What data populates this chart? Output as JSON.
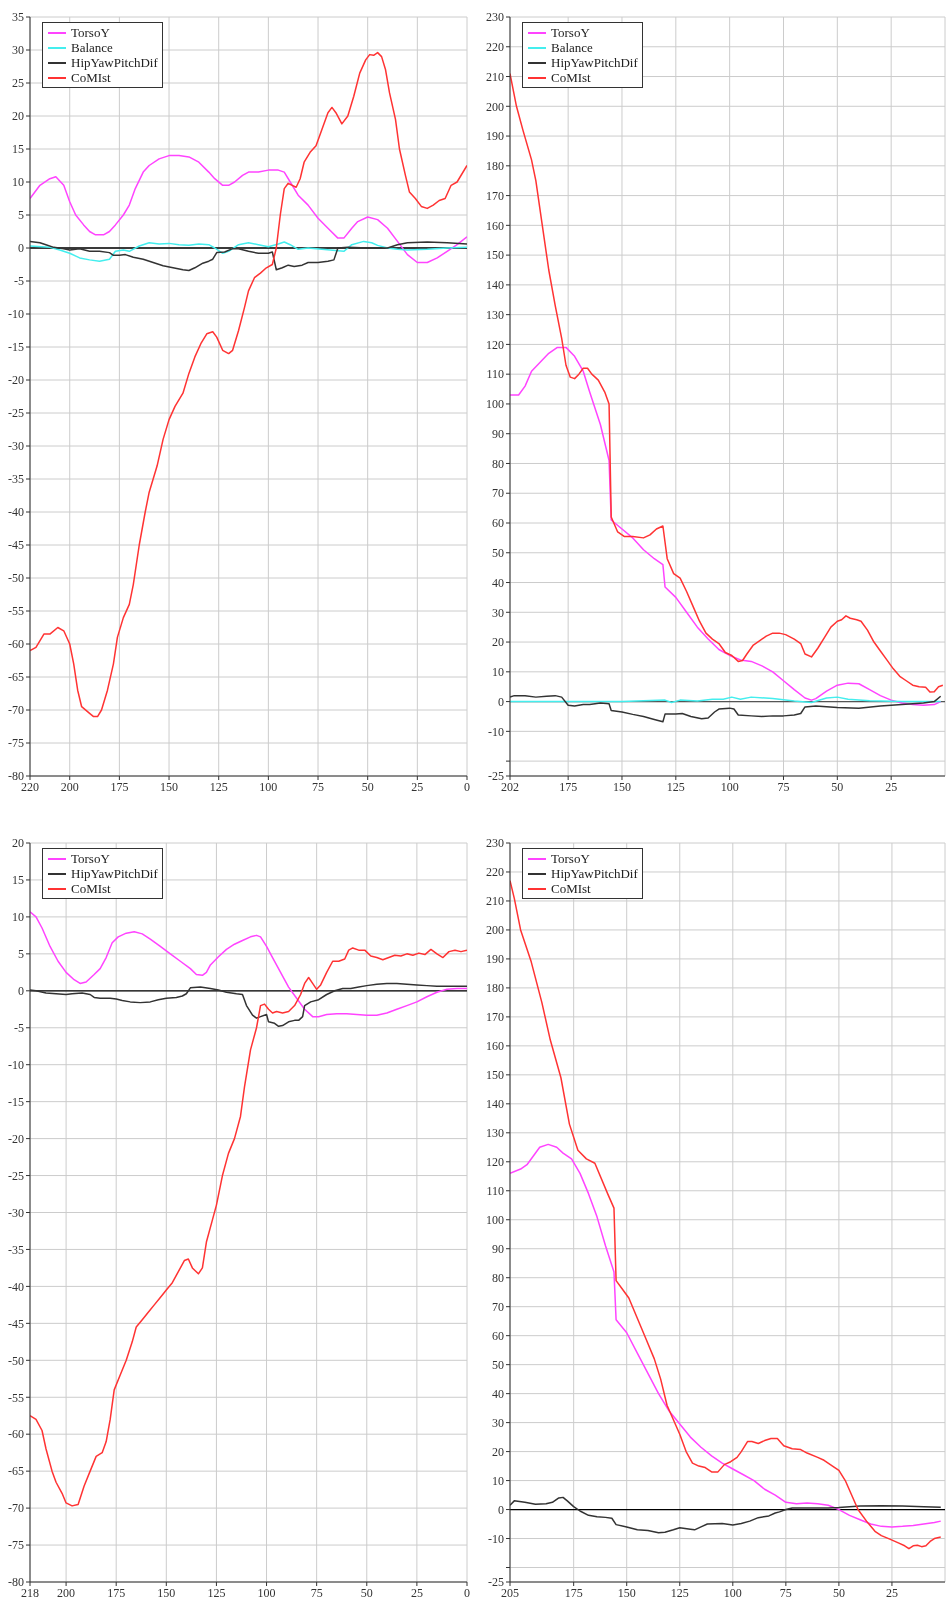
{
  "chart_data": [
    {
      "type": "line",
      "xlim": [
        220,
        0
      ],
      "xticks": [
        220,
        200,
        175,
        150,
        125,
        100,
        75,
        50,
        25,
        0
      ],
      "ylim": [
        -80,
        35
      ],
      "yticks": [
        35,
        30,
        25,
        20,
        15,
        10,
        5,
        0,
        -5,
        -10,
        -15,
        -20,
        -25,
        -30,
        -35,
        -40,
        -45,
        -50,
        -55,
        -60,
        -65,
        -70,
        -75,
        -80
      ],
      "grid": true,
      "legend": "top left",
      "ref_lines": [
        {
          "axis": "y",
          "value": 0,
          "color": "#000000"
        }
      ],
      "series": [
        {
          "name": "TorsoY",
          "color": "#ff44ff",
          "x": [
            220,
            215,
            210,
            207,
            203,
            200,
            197,
            193,
            190,
            187,
            183,
            180,
            177,
            173,
            170,
            167,
            163,
            160,
            155,
            150,
            145,
            140,
            135,
            130,
            127,
            123,
            120,
            117,
            113,
            110,
            105,
            100,
            95,
            92,
            89,
            85,
            80,
            75,
            70,
            65,
            62,
            58,
            55,
            50,
            45,
            40,
            35,
            30,
            25,
            20,
            15,
            10,
            5,
            0
          ],
          "values": [
            7.5,
            9.5,
            10.5,
            10.8,
            9.5,
            7,
            5,
            3.5,
            2.5,
            2,
            2,
            2.5,
            3.5,
            5,
            6.5,
            9,
            11.5,
            12.5,
            13.5,
            14,
            14,
            13.8,
            13,
            11.5,
            10.5,
            9.5,
            9.5,
            10,
            11,
            11.5,
            11.5,
            11.8,
            11.8,
            11.5,
            10,
            8,
            6.5,
            4.5,
            3,
            1.5,
            1.5,
            3,
            4,
            4.7,
            4.3,
            3,
            1,
            -1,
            -2.2,
            -2.2,
            -1.5,
            -0.5,
            0.5,
            1.7
          ]
        },
        {
          "name": "Balance",
          "color": "#44eeee",
          "x": [
            220,
            210,
            205,
            200,
            195,
            190,
            185,
            180,
            177,
            173,
            170,
            165,
            160,
            155,
            150,
            145,
            140,
            135,
            130,
            127,
            123,
            120,
            115,
            110,
            105,
            100,
            95,
            92,
            89,
            85,
            80,
            62,
            58,
            52,
            48,
            45,
            40,
            35,
            30,
            20,
            10,
            0
          ],
          "values": [
            0.3,
            0.1,
            -0.3,
            -0.8,
            -1.5,
            -1.8,
            -2,
            -1.7,
            -0.5,
            -0.3,
            -0.5,
            0.3,
            0.8,
            0.6,
            0.7,
            0.5,
            0.4,
            0.6,
            0.5,
            0,
            -0.8,
            -0.5,
            0.5,
            0.8,
            0.5,
            0.2,
            0.6,
            0.9,
            0.5,
            -0.2,
            0,
            -0.5,
            0.5,
            1,
            0.8,
            0.4,
            0,
            -0.2,
            -0.3,
            -0.2,
            0,
            0.1
          ]
        },
        {
          "name": "HipYawPitchDif",
          "color": "#333333",
          "x": [
            220,
            215,
            212,
            208,
            203,
            200,
            195,
            190,
            185,
            180,
            178,
            175,
            172,
            168,
            163,
            158,
            153,
            148,
            143,
            140,
            137,
            133,
            130,
            128,
            126,
            122,
            118,
            115,
            110,
            105,
            100,
            98,
            96,
            93,
            90,
            87,
            83,
            80,
            75,
            70,
            67,
            65,
            60,
            50,
            40,
            35,
            30,
            20,
            10,
            0
          ],
          "values": [
            1,
            0.8,
            0.5,
            0.1,
            -0.1,
            -0.3,
            -0.1,
            -0.5,
            -0.5,
            -0.7,
            -1.1,
            -1.1,
            -1,
            -1.4,
            -1.7,
            -2.2,
            -2.7,
            -3,
            -3.3,
            -3.4,
            -3,
            -2.3,
            -2,
            -1.7,
            -0.7,
            -0.6,
            -0.1,
            -0.1,
            -0.5,
            -0.8,
            -0.8,
            -0.6,
            -3.3,
            -3,
            -2.6,
            -2.8,
            -2.6,
            -2.2,
            -2.2,
            -2,
            -1.8,
            0,
            0.1,
            0,
            0,
            0.5,
            0.8,
            0.9,
            0.8,
            0.6
          ]
        },
        {
          "name": "CoMIst",
          "color": "#ff3333",
          "x": [
            220,
            217,
            213,
            210,
            206,
            203,
            200,
            198,
            196,
            194,
            190,
            188,
            186,
            184,
            181,
            178,
            176,
            173,
            170,
            168,
            165,
            162,
            160,
            156,
            153,
            150,
            147,
            143,
            140,
            137,
            134,
            131,
            128,
            126,
            123,
            120,
            118,
            115,
            112,
            110,
            107,
            104,
            101,
            98,
            96,
            94,
            92,
            90,
            88,
            86,
            84,
            82,
            79,
            76,
            73,
            70,
            68,
            66,
            63,
            60,
            57,
            54,
            51,
            49,
            47,
            45,
            43,
            41,
            39,
            36,
            34,
            31,
            29,
            26,
            23,
            20,
            17,
            14,
            11,
            8,
            5,
            0
          ],
          "values": [
            -61,
            -60.5,
            -58.5,
            -58.5,
            -57.5,
            -58,
            -60,
            -63,
            -67,
            -69.5,
            -70.5,
            -71,
            -71,
            -70,
            -67,
            -63,
            -59,
            -56,
            -54,
            -51,
            -45,
            -40,
            -37,
            -33,
            -29,
            -26,
            -24,
            -22,
            -19,
            -16.5,
            -14.5,
            -13,
            -12.7,
            -13.5,
            -15.5,
            -16,
            -15.5,
            -12.5,
            -9,
            -6.5,
            -4.5,
            -3.8,
            -3,
            -2.5,
            0,
            5,
            9,
            9.8,
            9.5,
            9.2,
            10.5,
            13,
            14.5,
            15.5,
            18,
            20.5,
            21.3,
            20.5,
            18.8,
            20,
            23,
            26.5,
            28.5,
            29.3,
            29.2,
            29.6,
            29,
            27,
            23.5,
            19.5,
            15,
            11,
            8.5,
            7.5,
            6.3,
            6,
            6.5,
            7.2,
            7.5,
            9.5,
            10,
            12.5
          ]
        }
      ]
    },
    {
      "type": "line",
      "xlim": [
        202,
        0
      ],
      "xticks": [
        202,
        175,
        150,
        125,
        100,
        75,
        50,
        25
      ],
      "ylim": [
        -25,
        230
      ],
      "yticks": [
        230,
        220,
        210,
        200,
        190,
        180,
        170,
        160,
        150,
        140,
        130,
        120,
        110,
        100,
        90,
        80,
        70,
        60,
        50,
        40,
        30,
        20,
        10,
        0,
        -10,
        {
          "value": -20,
          "label": null
        },
        -25
      ],
      "grid": true,
      "legend": "top left",
      "ref_lines": [
        {
          "axis": "y",
          "value": 0,
          "color": "#555555"
        }
      ],
      "series": [
        {
          "name": "TorsoY",
          "color": "#ff44ff",
          "x": [
            202,
            198,
            195,
            192,
            188,
            184,
            180,
            176,
            172,
            168,
            165,
            160,
            156,
            155,
            150,
            145,
            140,
            135,
            131,
            130,
            125,
            120,
            115,
            110,
            105,
            100,
            95,
            90,
            85,
            80,
            75,
            70,
            65,
            62,
            60,
            55,
            50,
            45,
            40,
            35,
            30,
            25,
            20,
            15,
            10,
            5,
            2
          ],
          "values": [
            103,
            103,
            106,
            111,
            114,
            117,
            119,
            119,
            116,
            111,
            104,
            93,
            81,
            61,
            58,
            55,
            51,
            48,
            46,
            38.5,
            35,
            30,
            25,
            21,
            17.5,
            15.5,
            14,
            13.5,
            12,
            10,
            7,
            4,
            1.2,
            0.5,
            1,
            3.5,
            5.5,
            6.2,
            6,
            4,
            2,
            0.5,
            -0.5,
            -1,
            -1.2,
            -1,
            0
          ]
        },
        {
          "name": "Balance",
          "color": "#44eeee",
          "x": [
            202,
            150,
            130,
            127,
            123,
            115,
            108,
            103,
            99,
            95,
            90,
            80,
            70,
            62,
            55,
            50,
            45,
            35,
            20,
            2
          ],
          "values": [
            0,
            0,
            0.5,
            -0.3,
            0.5,
            0.2,
            0.8,
            0.8,
            1.5,
            0.8,
            1.5,
            1,
            0.2,
            -0.3,
            1.2,
            1.5,
            0.8,
            0.3,
            0,
            0
          ]
        },
        {
          "name": "HipYawPitchDif",
          "color": "#333333",
          "x": [
            202,
            200,
            195,
            190,
            185,
            181,
            178,
            175,
            172,
            168,
            165,
            160,
            156,
            155,
            150,
            145,
            140,
            135,
            131,
            130,
            125,
            122,
            118,
            113,
            110,
            107,
            105,
            100,
            98,
            96,
            90,
            85,
            80,
            75,
            70,
            67,
            65,
            60,
            50,
            40,
            30,
            20,
            10,
            5,
            2
          ],
          "values": [
            1.5,
            2,
            2,
            1.5,
            1.8,
            2,
            1.5,
            -1.2,
            -1.5,
            -1,
            -1,
            -0.5,
            -0.7,
            -3,
            -3.5,
            -4.3,
            -5,
            -6,
            -6.8,
            -4.2,
            -4.2,
            -4,
            -5,
            -5.8,
            -5.5,
            -3.5,
            -2.5,
            -2.2,
            -2.5,
            -4.5,
            -4.8,
            -5,
            -4.8,
            -4.8,
            -4.5,
            -4,
            -1.8,
            -1.5,
            -2,
            -2.2,
            -1.5,
            -1,
            -0.5,
            0,
            1.8
          ]
        },
        {
          "name": "CoMIst",
          "color": "#ff3333",
          "x": [
            202,
            199,
            196,
            192,
            190,
            187,
            184,
            181,
            178,
            176,
            174,
            172,
            170,
            168,
            166,
            164,
            161,
            158,
            156,
            155,
            152,
            149,
            145,
            140,
            137,
            134,
            131,
            129,
            126,
            123,
            120,
            117,
            114,
            111,
            108,
            105,
            102,
            99,
            96,
            94,
            92,
            89,
            86,
            83,
            80,
            77,
            74,
            70,
            67,
            65,
            62,
            59,
            56,
            53,
            50,
            48,
            46,
            44,
            41,
            39,
            36,
            33,
            30,
            27,
            24,
            21,
            18,
            15,
            12,
            9,
            7,
            5,
            3,
            1
          ],
          "values": [
            211,
            200,
            192,
            182,
            175,
            160,
            145,
            133,
            122,
            113,
            109,
            108.5,
            110,
            112,
            112,
            110,
            108,
            104,
            100,
            62,
            57,
            55.5,
            55.5,
            55,
            56,
            58,
            59,
            48,
            43,
            41.5,
            37,
            32,
            27,
            23,
            21,
            19.5,
            16.5,
            15.5,
            13.5,
            13.8,
            16,
            19,
            20.5,
            22,
            23,
            23,
            22.5,
            21,
            19.5,
            16,
            15,
            18,
            21.5,
            25,
            27,
            27.5,
            28.8,
            28,
            27.5,
            27,
            24,
            20,
            17,
            14,
            11,
            8.5,
            7,
            5.5,
            5,
            4.8,
            3.2,
            3.3,
            5,
            5.5
          ]
        }
      ]
    },
    {
      "type": "line",
      "xlim": [
        218,
        0
      ],
      "xticks": [
        218,
        200,
        175,
        150,
        125,
        100,
        75,
        50,
        25,
        0
      ],
      "ylim": [
        -80,
        20
      ],
      "yticks": [
        20,
        15,
        10,
        5,
        0,
        -5,
        -10,
        -15,
        -20,
        -25,
        -30,
        -35,
        -40,
        -45,
        -50,
        -55,
        -60,
        -65,
        -70,
        -75,
        -80
      ],
      "grid": true,
      "legend": "top left",
      "ref_lines": [
        {
          "axis": "y",
          "value": 0,
          "color": "#000000"
        }
      ],
      "series": [
        {
          "name": "TorsoY",
          "color": "#ff44ff",
          "x": [
            218,
            215,
            212,
            208,
            204,
            200,
            196,
            193,
            190,
            186,
            183,
            180,
            177,
            174,
            170,
            166,
            162,
            158,
            153,
            148,
            143,
            138,
            135,
            132,
            130,
            128,
            124,
            120,
            116,
            112,
            108,
            105,
            103,
            100,
            97,
            93,
            89,
            85,
            81,
            77,
            74,
            70,
            65,
            60,
            55,
            50,
            45,
            40,
            35,
            30,
            25,
            20,
            15,
            10,
            5,
            0
          ],
          "values": [
            10.7,
            10,
            8.5,
            6,
            4,
            2.5,
            1.5,
            1,
            1.2,
            2.2,
            3,
            4.5,
            6.5,
            7.3,
            7.8,
            8,
            7.7,
            7,
            6,
            5,
            4,
            3,
            2.2,
            2.1,
            2.5,
            3.5,
            4.6,
            5.6,
            6.3,
            6.8,
            7.3,
            7.5,
            7.3,
            6,
            4.5,
            2.5,
            0.5,
            -1,
            -2.5,
            -3.5,
            -3.5,
            -3.2,
            -3.1,
            -3.1,
            -3.2,
            -3.3,
            -3.3,
            -3,
            -2.5,
            -2,
            -1.5,
            -0.8,
            -0.2,
            0.2,
            0.3,
            0.3
          ]
        },
        {
          "name": "HipYawPitchDif",
          "color": "#333333",
          "x": [
            218,
            215,
            210,
            205,
            200,
            197,
            192,
            188,
            186,
            183,
            178,
            175,
            172,
            168,
            163,
            158,
            154,
            150,
            145,
            142,
            140,
            138,
            133,
            128,
            124,
            120,
            115,
            112,
            110,
            107,
            105,
            103,
            100,
            99,
            96,
            94,
            92,
            89,
            86,
            84,
            82,
            81,
            78,
            74,
            70,
            66,
            62,
            58,
            54,
            50,
            45,
            40,
            35,
            30,
            25,
            20,
            15,
            10,
            5,
            0
          ],
          "values": [
            0.1,
            0,
            -0.3,
            -0.4,
            -0.5,
            -0.4,
            -0.3,
            -0.5,
            -0.9,
            -1,
            -1,
            -1.1,
            -1.3,
            -1.5,
            -1.6,
            -1.5,
            -1.2,
            -1,
            -0.9,
            -0.7,
            -0.4,
            0.4,
            0.5,
            0.3,
            0.1,
            -0.2,
            -0.4,
            -0.5,
            -2,
            -3.3,
            -3.7,
            -3.5,
            -3.2,
            -4.2,
            -4.4,
            -4.8,
            -4.7,
            -4.2,
            -4,
            -4,
            -3.5,
            -2,
            -1.5,
            -1.2,
            -0.5,
            0,
            0.3,
            0.3,
            0.5,
            0.7,
            0.9,
            1,
            1,
            0.9,
            0.8,
            0.7,
            0.6,
            0.6,
            0.6,
            0.6
          ]
        },
        {
          "name": "CoMIst",
          "color": "#ff3333",
          "x": [
            218,
            215,
            212,
            210,
            207,
            205,
            202,
            200,
            197,
            194,
            191,
            188,
            185,
            182,
            180,
            178,
            176,
            173,
            170,
            167,
            165,
            162,
            159,
            156,
            153,
            150,
            147,
            144,
            141,
            139,
            137,
            134,
            132,
            130,
            127,
            125,
            122,
            119,
            116,
            113,
            111,
            108,
            105,
            103,
            101,
            99,
            97,
            95,
            92,
            89,
            86,
            83,
            81,
            79,
            77,
            75,
            73,
            70,
            67,
            64,
            61,
            59,
            57,
            54,
            51,
            48,
            45,
            42,
            39,
            36,
            33,
            30,
            27,
            24,
            21,
            18,
            15,
            12,
            9,
            6,
            3,
            0
          ],
          "values": [
            -57.5,
            -58,
            -59.5,
            -62,
            -65,
            -66.5,
            -68,
            -69.3,
            -69.7,
            -69.5,
            -67,
            -65,
            -63,
            -62.5,
            -61,
            -58,
            -54,
            -52,
            -50,
            -47.5,
            -45.5,
            -44.5,
            -43.5,
            -42.5,
            -41.5,
            -40.5,
            -39.5,
            -38,
            -36.5,
            -36.3,
            -37.5,
            -38.3,
            -37.5,
            -34,
            -31,
            -29,
            -25,
            -22,
            -20,
            -17,
            -13,
            -8,
            -5,
            -2,
            -1.8,
            -2.5,
            -3,
            -2.8,
            -3,
            -2.8,
            -2,
            -0.5,
            1,
            1.8,
            1,
            0.2,
            0.8,
            2.5,
            4,
            4,
            4.3,
            5.5,
            5.8,
            5.5,
            5.5,
            4.7,
            4.5,
            4.2,
            4.5,
            4.8,
            4.7,
            5,
            4.8,
            5.1,
            4.9,
            5.6,
            5,
            4.5,
            5.3,
            5.5,
            5.3,
            5.5
          ]
        }
      ]
    },
    {
      "type": "line",
      "xlim": [
        205,
        0
      ],
      "xticks": [
        205,
        175,
        150,
        125,
        100,
        75,
        50,
        25
      ],
      "ylim": [
        -25,
        230
      ],
      "yticks": [
        230,
        220,
        210,
        200,
        190,
        180,
        170,
        160,
        150,
        140,
        130,
        120,
        110,
        100,
        90,
        80,
        70,
        60,
        50,
        40,
        30,
        20,
        10,
        0,
        -10,
        {
          "value": -20,
          "label": null
        },
        -25
      ],
      "grid": true,
      "legend": "top left",
      "ref_lines": [
        {
          "axis": "y",
          "value": 0,
          "color": "#000000"
        }
      ],
      "series": [
        {
          "name": "TorsoY",
          "color": "#ff44ff",
          "x": [
            205,
            200,
            197,
            194,
            191,
            187,
            183,
            180,
            176,
            172,
            168,
            164,
            160,
            156,
            155,
            150,
            145,
            140,
            135,
            130,
            125,
            120,
            115,
            110,
            105,
            100,
            95,
            90,
            85,
            80,
            75,
            70,
            65,
            60,
            55,
            50,
            45,
            40,
            35,
            30,
            25,
            20,
            15,
            10,
            5,
            2
          ],
          "values": [
            116,
            117.5,
            119,
            122,
            125,
            126,
            125,
            123,
            121,
            116,
            109,
            101,
            91,
            82,
            65.5,
            61,
            54,
            47,
            40,
            34,
            29.5,
            25,
            21.5,
            18.5,
            16,
            14,
            12,
            10,
            7,
            5,
            2.5,
            2,
            2.3,
            2,
            1.5,
            0,
            -2,
            -3.5,
            -5,
            -5.8,
            -6,
            -5.8,
            -5.5,
            -5,
            -4.5,
            -4
          ]
        },
        {
          "name": "HipYawPitchDif",
          "color": "#333333",
          "x": [
            205,
            203,
            198,
            193,
            188,
            185,
            182,
            180,
            178,
            175,
            172,
            168,
            164,
            160,
            157,
            155,
            150,
            145,
            140,
            135,
            132,
            128,
            125,
            120,
            118,
            115,
            112,
            105,
            100,
            96,
            92,
            88,
            83,
            80,
            78,
            75,
            72,
            65,
            55,
            50,
            45,
            40,
            30,
            20,
            10,
            2
          ],
          "values": [
            1.5,
            3,
            2.5,
            1.8,
            2,
            2.5,
            4,
            4.2,
            3,
            1,
            -0.5,
            -2,
            -2.5,
            -2.7,
            -3,
            -5.2,
            -6,
            -7,
            -7.2,
            -8,
            -7.8,
            -7,
            -6.3,
            -6.8,
            -7,
            -6,
            -5,
            -4.8,
            -5.3,
            -4.8,
            -4,
            -2.8,
            -2.2,
            -1.2,
            -0.8,
            0,
            0.5,
            0.5,
            0.5,
            0.7,
            1,
            1.2,
            1.3,
            1.2,
            1,
            0.8
          ]
        },
        {
          "name": "CoMIst",
          "color": "#ff3333",
          "x": [
            205,
            203,
            200,
            195,
            190,
            186,
            181,
            177,
            173,
            169,
            165,
            159,
            156,
            155,
            152,
            149,
            145,
            141,
            137,
            134,
            131,
            128,
            125,
            122,
            119,
            116,
            113,
            110,
            107,
            104,
            101,
            98,
            96,
            93,
            91,
            88,
            85,
            82,
            79,
            76,
            72,
            68,
            65,
            60,
            57,
            53,
            50,
            47,
            44,
            41,
            37,
            33,
            30,
            26,
            22,
            19,
            17,
            15,
            13,
            11,
            9,
            7,
            5,
            2
          ],
          "values": [
            217,
            211,
            200,
            189,
            175,
            162,
            149,
            133,
            124,
            121,
            119.5,
            109,
            104,
            79,
            76,
            73,
            66,
            59,
            52,
            45,
            36,
            31,
            26,
            20,
            16,
            15,
            14.5,
            13,
            13,
            15.5,
            16.5,
            18,
            20,
            23.5,
            23.5,
            22.8,
            23.8,
            24.5,
            24.5,
            22,
            21,
            20.7,
            19.5,
            18,
            17,
            15,
            13.5,
            10,
            5,
            0,
            -4,
            -7.5,
            -9,
            -10.2,
            -11.5,
            -12.5,
            -13.5,
            -12.5,
            -12.3,
            -12.8,
            -12.5,
            -11,
            -10,
            -9.5
          ]
        }
      ]
    }
  ]
}
